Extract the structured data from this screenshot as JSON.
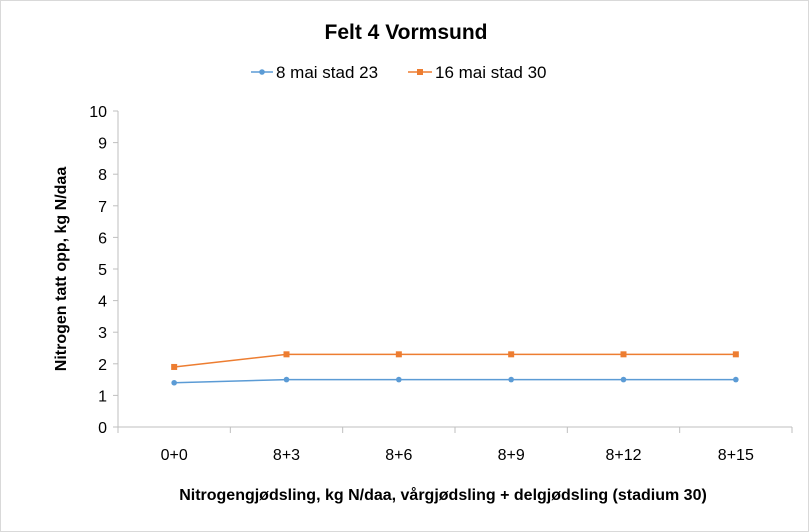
{
  "chart_data": {
    "type": "line",
    "title": "Felt 4 Vormsund",
    "xlabel": "Nitrogengjødsling, kg N/daa, vårgjødsling + delgjødsling (stadium 30)",
    "ylabel": "Nitrogen tatt opp, kg N/daa",
    "categories": [
      "0+0",
      "8+3",
      "8+6",
      "8+9",
      "8+12",
      "8+15"
    ],
    "ylim": [
      0,
      10
    ],
    "yticks": [
      "0",
      "1",
      "2",
      "3",
      "4",
      "5",
      "6",
      "7",
      "8",
      "9",
      "10"
    ],
    "grid": false,
    "legend_position": "top",
    "series": [
      {
        "name": "8 mai stad 23",
        "values": [
          1.4,
          1.5,
          1.5,
          1.5,
          1.5,
          1.5
        ],
        "color": "#5b9bd5",
        "marker": "circle"
      },
      {
        "name": "16 mai stad 30",
        "values": [
          1.9,
          2.3,
          2.3,
          2.3,
          2.3,
          2.3
        ],
        "color": "#ed7d31",
        "marker": "square"
      }
    ]
  }
}
